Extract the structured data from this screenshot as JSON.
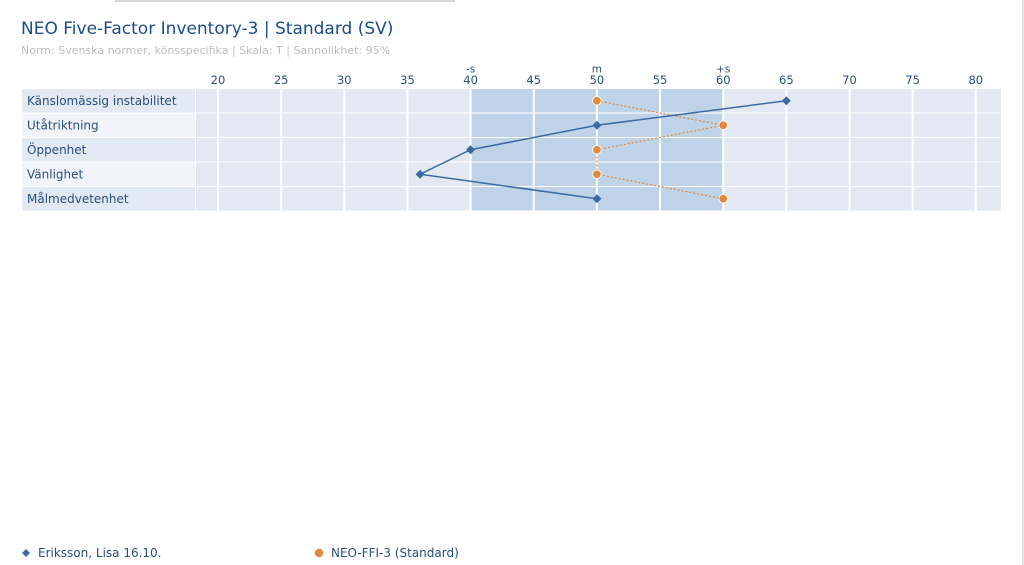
{
  "page": {
    "title": "NEO Five-Factor Inventory-3 | Standard (SV)",
    "subtitle": "Norm: Svenska normer, könsspecifika | Skala: T | Sannolikhet: 95%"
  },
  "colors": {
    "title": "#1c4c8a",
    "row_band": "#e2e9f2",
    "row_label_bg_odd": "#e2e9f2",
    "row_label_bg_even": "#f1f5f9",
    "norm_band": "#b8cfe6",
    "series_person": "#3c6aa0",
    "series_norm": "#e08a3c",
    "axis_text": "#2a4f7c"
  },
  "chart_data": {
    "type": "line",
    "orientation": "horizontal-profile",
    "title": "NEO Five-Factor Inventory-3 | Standard (SV)",
    "subtitle": "Norm: Svenska normer, könsspecifika | Skala: T | Sannolikhet: 95%",
    "categories": [
      "Känslomässig instabilitet",
      "Utåtriktning",
      "Öppenhet",
      "Vänlighet",
      "Målmedvetenhet"
    ],
    "xlim": [
      15,
      82
    ],
    "ticks": [
      20,
      25,
      30,
      35,
      40,
      45,
      50,
      55,
      60,
      65,
      70,
      75,
      80
    ],
    "reference_marks": [
      {
        "label": "-s",
        "value": 40
      },
      {
        "label": "m",
        "value": 50
      },
      {
        "label": "+s",
        "value": 60
      }
    ],
    "norm_band": [
      40,
      60
    ],
    "grid": true,
    "legend_position": "bottom",
    "series": [
      {
        "name": "Eriksson, Lisa 16.10.",
        "marker": "diamond",
        "line": "solid",
        "values": [
          65,
          50,
          40,
          36,
          50
        ]
      },
      {
        "name": "NEO-FFI-3 (Standard)",
        "marker": "circle",
        "line": "dotted",
        "values": [
          50,
          60,
          50,
          50,
          60
        ]
      }
    ]
  }
}
